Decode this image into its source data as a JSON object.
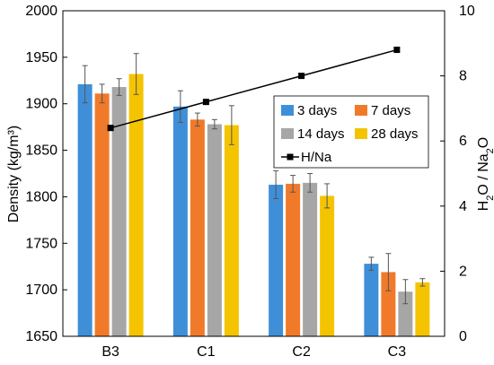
{
  "chart_data": {
    "type": "bar",
    "categories": [
      "B3",
      "C1",
      "C2",
      "C3"
    ],
    "series": [
      {
        "name": "3 days",
        "color": "#3f8fd8",
        "values": [
          1921,
          1897,
          1813,
          1728
        ],
        "errors": [
          20,
          17,
          15,
          7
        ]
      },
      {
        "name": "7 days",
        "color": "#f07a2a",
        "values": [
          1911,
          1883,
          1814,
          1719
        ],
        "errors": [
          10,
          7,
          9,
          20
        ]
      },
      {
        "name": "14 days",
        "color": "#a6a6a6",
        "values": [
          1918,
          1878,
          1815,
          1698
        ],
        "errors": [
          9,
          5,
          10,
          13
        ]
      },
      {
        "name": "28 days",
        "color": "#f5c400",
        "values": [
          1932,
          1877,
          1801,
          1708
        ],
        "errors": [
          22,
          21,
          13,
          4
        ]
      }
    ],
    "line_series": {
      "name": "H/Na",
      "color": "#000000",
      "marker": "square",
      "axis": "right",
      "values": [
        6.4,
        7.2,
        8.0,
        8.8
      ]
    },
    "ylabel": "Density (kg/m³)",
    "y2label": "H₂O / Na₂O",
    "ylim": [
      1650,
      2000
    ],
    "y2lim": [
      0,
      10
    ],
    "yticks": [
      "1650",
      "1700",
      "1750",
      "1800",
      "1850",
      "1900",
      "1950",
      "2000"
    ],
    "y2ticks": [
      "0",
      "2",
      "4",
      "6",
      "8",
      "10"
    ],
    "grid": false,
    "legend_position": "center-right"
  }
}
